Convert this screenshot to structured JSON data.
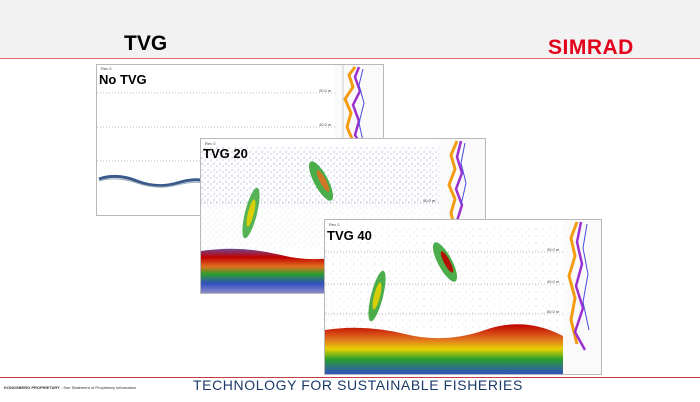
{
  "slide": {
    "title": "TVG",
    "logo": "SIMRAD"
  },
  "panels": [
    {
      "label": "No TVG",
      "header": "Rec 0",
      "depth_ticks": [
        "20.0 m",
        "40.0 m"
      ]
    },
    {
      "label": "TVG 20",
      "header": "Rec 0",
      "depth_ticks": [
        "40.0 m"
      ]
    },
    {
      "label": "TVG 40",
      "header": "Rec 0",
      "depth_ticks": [
        "20.0 m",
        "40.0 m",
        "60.0 m"
      ]
    }
  ],
  "footer": {
    "company": "KONGSBERG PROPRIETARY",
    "notice": " - See Statement of Proprietary Information",
    "tagline": "TECHNOLOGY FOR SUSTAINABLE FISHERIES"
  },
  "colors": {
    "brand_red": "#e3001b",
    "tagline_blue": "#1a3a6a",
    "echo_blue": "#6c7fb8",
    "echo_red": "#c00000",
    "echo_green": "#2ca02c",
    "echo_yellow": "#e8d000",
    "curve_orange": "#f39c12",
    "curve_purple": "#9b30d0"
  }
}
